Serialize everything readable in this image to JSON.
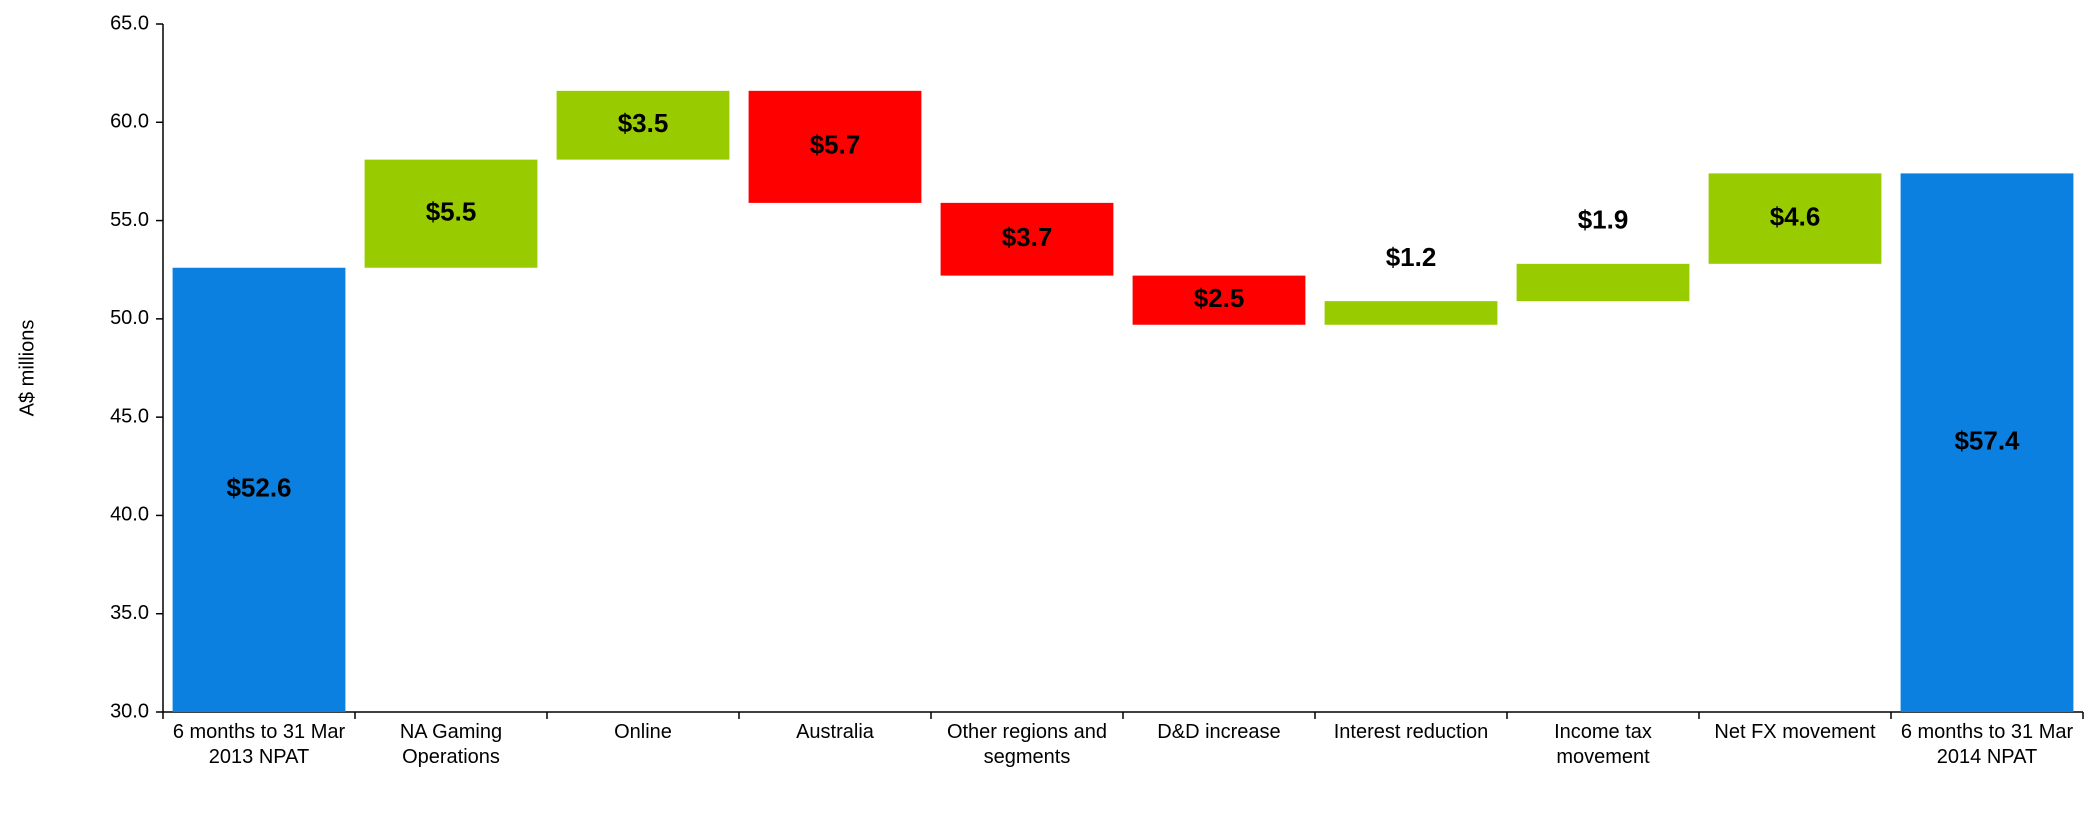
{
  "chart_data": {
    "type": "waterfall",
    "y_label": "A$ millions",
    "categories": [
      "6 months to 31 Mar 2013 NPAT",
      "NA Gaming Operations",
      "Online",
      "Australia",
      "Other regions and segments",
      "D&D increase",
      "Interest reduction",
      "Income tax movement",
      "Net FX movement",
      "6 months to 31 Mar 2014 NPAT"
    ],
    "values": [
      52.6,
      5.5,
      3.5,
      -5.7,
      -3.7,
      -2.5,
      1.2,
      1.9,
      4.6,
      57.4
    ],
    "value_labels": [
      "$52.6",
      "$5.5",
      "$3.5",
      "$5.7",
      "$3.7",
      "$2.5",
      "$1.2",
      "$1.9",
      "$4.6",
      "$57.4"
    ],
    "is_total": [
      true,
      false,
      false,
      false,
      false,
      false,
      false,
      false,
      false,
      true
    ],
    "colors": {
      "total": "#0b80e0",
      "increase": "#99cc00",
      "decrease": "#ff0000"
    },
    "ylim": [
      30,
      65
    ],
    "yticks": [
      {
        "value": 30,
        "label": "30.0"
      },
      {
        "value": 35,
        "label": "35.0"
      },
      {
        "value": 40,
        "label": "40.0"
      },
      {
        "value": 45,
        "label": "45.0"
      },
      {
        "value": 50,
        "label": "50.0"
      },
      {
        "value": 55,
        "label": "55.0"
      },
      {
        "value": 60,
        "label": "60.0"
      },
      {
        "value": 65,
        "label": "65.0"
      }
    ],
    "grid": false
  }
}
